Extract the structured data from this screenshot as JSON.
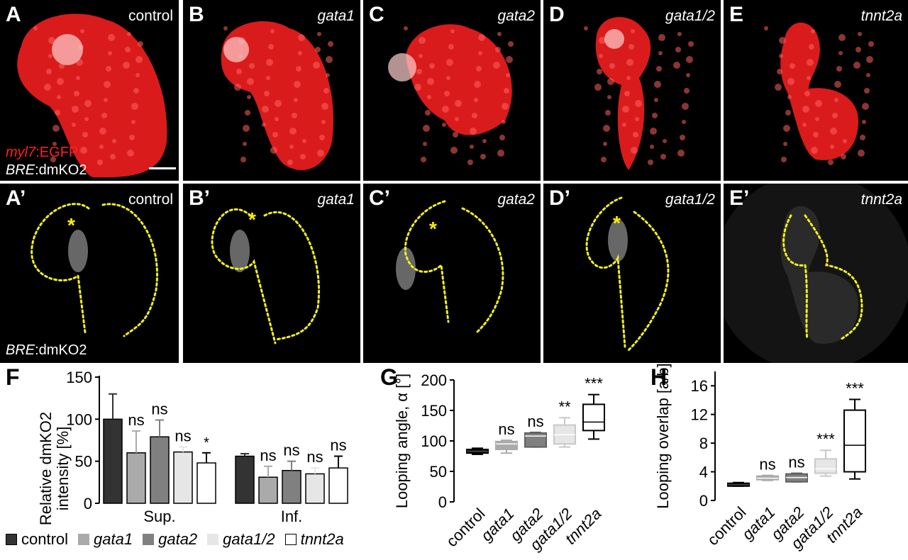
{
  "panels_top": [
    {
      "label": "A",
      "condition": "control",
      "italic": false
    },
    {
      "label": "B",
      "condition": "gata1",
      "italic": true
    },
    {
      "label": "C",
      "condition": "gata2",
      "italic": true
    },
    {
      "label": "D",
      "condition": "gata1/2",
      "italic": true
    },
    {
      "label": "E",
      "condition": "tnnt2a",
      "italic": true
    }
  ],
  "panels_bottom": [
    {
      "label": "A’",
      "condition": "control",
      "italic": false
    },
    {
      "label": "B’",
      "condition": "gata1",
      "italic": true
    },
    {
      "label": "C’",
      "condition": "gata2",
      "italic": true
    },
    {
      "label": "D’",
      "condition": "gata1/2",
      "italic": true
    },
    {
      "label": "E’",
      "condition": "tnnt2a",
      "italic": true
    }
  ],
  "channels": {
    "myl7_gene": "myl7",
    "myl7_rest": ":EGFP",
    "bre_gene": "BRE",
    "bre_rest": ":dmKO2"
  },
  "asterisk": "*",
  "colors": {
    "myl7": "#ff2020",
    "outline": "#f2ef22",
    "asterisk": "#ffee00"
  },
  "chart_labels": {
    "F": "F",
    "G": "G",
    "H": "H"
  },
  "legend": [
    {
      "name": "control",
      "color": "#333333",
      "italic": false
    },
    {
      "name": "gata1",
      "color": "#aaaaaa",
      "italic": true
    },
    {
      "name": "gata2",
      "color": "#808080",
      "italic": true
    },
    {
      "name": "gata1/2",
      "color": "#e6e6e6",
      "italic": true
    },
    {
      "name": "tnnt2a",
      "color": "#ffffff",
      "italic": true
    }
  ],
  "chart_data": [
    {
      "type": "bar",
      "title": "",
      "ylabel": "Relative dmKO2 intensity [%]",
      "ylim": [
        0,
        150
      ],
      "yticks": [
        0,
        50,
        100,
        150
      ],
      "groups": [
        "Sup.",
        "Inf."
      ],
      "categories": [
        "control",
        "gata1",
        "gata2",
        "gata1/2",
        "tnnt2a"
      ],
      "series": [
        {
          "group": "Sup.",
          "values": [
            100,
            60,
            79,
            61,
            48
          ],
          "errors": [
            30,
            26,
            20,
            6,
            12
          ],
          "significance": [
            "",
            "ns",
            "ns",
            "ns",
            "*"
          ]
        },
        {
          "group": "Inf.",
          "values": [
            56,
            31,
            39,
            35,
            42
          ],
          "errors": [
            3,
            13,
            11,
            7,
            14
          ],
          "significance": [
            "",
            "ns",
            "ns",
            "ns",
            "ns"
          ]
        }
      ]
    },
    {
      "type": "box",
      "ylabel": "Looping angle, α [°]",
      "ylim": [
        0,
        200
      ],
      "yticks": [
        0,
        50,
        100,
        150,
        200
      ],
      "categories": [
        "control",
        "gata1",
        "gata2",
        "gata1/2",
        "tnnt2a"
      ],
      "boxes": [
        {
          "min": 78,
          "q1": 80,
          "median": 83,
          "q3": 86,
          "max": 88,
          "sig": ""
        },
        {
          "min": 80,
          "q1": 86,
          "median": 95,
          "q3": 99,
          "max": 101,
          "sig": "ns"
        },
        {
          "min": 90,
          "q1": 90,
          "median": 108,
          "q3": 113,
          "max": 114,
          "sig": "ns"
        },
        {
          "min": 90,
          "q1": 95,
          "median": 110,
          "q3": 126,
          "max": 138,
          "sig": "**"
        },
        {
          "min": 103,
          "q1": 117,
          "median": 131,
          "q3": 160,
          "max": 176,
          "sig": "***"
        }
      ]
    },
    {
      "type": "box",
      "ylabel": "Looping overlap [a/b]",
      "ylim": [
        0,
        18
      ],
      "yticks": [
        0,
        4,
        8,
        12,
        16
      ],
      "categories": [
        "control",
        "gata1",
        "gata2",
        "gata1/2",
        "tnnt2a"
      ],
      "boxes": [
        {
          "min": 2.0,
          "q1": 2.0,
          "median": 2.2,
          "q3": 2.4,
          "max": 2.5,
          "sig": ""
        },
        {
          "min": 2.8,
          "q1": 2.9,
          "median": 3.1,
          "q3": 3.4,
          "max": 3.5,
          "sig": "ns"
        },
        {
          "min": 2.6,
          "q1": 2.6,
          "median": 3.2,
          "q3": 3.7,
          "max": 3.8,
          "sig": "ns"
        },
        {
          "min": 3.4,
          "q1": 3.8,
          "median": 4.4,
          "q3": 5.8,
          "max": 7.0,
          "sig": "***"
        },
        {
          "min": 3.0,
          "q1": 4.0,
          "median": 7.7,
          "q3": 12.6,
          "max": 14.1,
          "sig": "***"
        }
      ]
    }
  ]
}
